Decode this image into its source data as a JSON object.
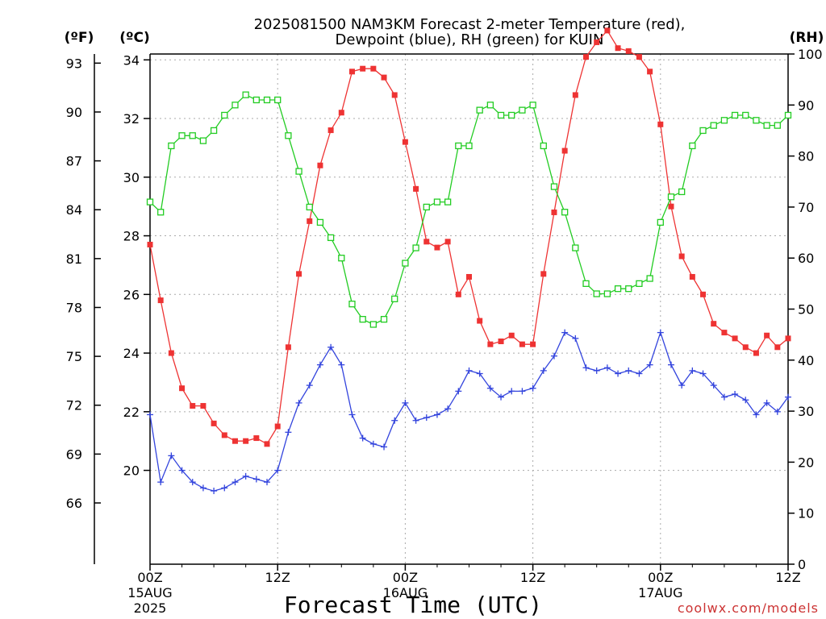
{
  "chart_data": {
    "type": "line",
    "title_line1": "2025081500 NAM3KM Forecast 2-meter Temperature (red),",
    "title_line2": "Dewpoint (blue), RH (green) for KUIN",
    "xlabel": "Forecast Time (UTC)",
    "left_outer_unit": "(ºF)",
    "left_inner_unit": "(ºC)",
    "right_unit": "(RH)",
    "watermark": "coolwx.com/models",
    "grid": true,
    "x_range_hours": [
      0,
      60
    ],
    "celsius_range": [
      16.8,
      34.2
    ],
    "rh_range": [
      0,
      100
    ],
    "fahrenheit_ticks": [
      "93",
      "90",
      "87",
      "84",
      "81",
      "78",
      "75",
      "72",
      "69",
      "66"
    ],
    "celsius_ticks": [
      "34",
      "32",
      "30",
      "28",
      "26",
      "24",
      "22",
      "20"
    ],
    "rh_ticks": [
      "100",
      "90",
      "80",
      "70",
      "60",
      "50",
      "40",
      "30",
      "20",
      "10",
      "0"
    ],
    "x_ticks": [
      {
        "hour": 0,
        "line1": "00Z",
        "line2": "15AUG",
        "line3": "2025"
      },
      {
        "hour": 12,
        "line1": "12Z",
        "line2": "",
        "line3": ""
      },
      {
        "hour": 24,
        "line1": "00Z",
        "line2": "16AUG",
        "line3": ""
      },
      {
        "hour": 36,
        "line1": "12Z",
        "line2": "",
        "line3": ""
      },
      {
        "hour": 48,
        "line1": "00Z",
        "line2": "17AUG",
        "line3": ""
      },
      {
        "hour": 60,
        "line1": "12Z",
        "line2": "",
        "line3": ""
      }
    ],
    "series": [
      {
        "key": "temperature",
        "unit": "C",
        "color": "#ee3333",
        "marker": "filled-square",
        "values": [
          27.7,
          25.8,
          24.0,
          22.8,
          22.2,
          22.2,
          21.6,
          21.2,
          21.0,
          21.0,
          21.1,
          20.9,
          21.5,
          24.2,
          26.7,
          28.5,
          30.4,
          31.6,
          32.2,
          33.6,
          33.7,
          33.7,
          33.4,
          32.8,
          31.2,
          29.6,
          27.8,
          27.6,
          27.8,
          26.0,
          26.6,
          25.1,
          24.3,
          24.4,
          24.6,
          24.3,
          24.3,
          26.7,
          28.8,
          30.9,
          32.8,
          34.1,
          34.6,
          35.0,
          34.4,
          34.3,
          34.1,
          33.6,
          31.8,
          29.0,
          27.3,
          26.6,
          26.0,
          25.0,
          24.7,
          24.5,
          24.2,
          24.0,
          24.6,
          24.2,
          24.5
        ]
      },
      {
        "key": "dewpoint",
        "unit": "C",
        "color": "#3344dd",
        "marker": "plus",
        "values": [
          21.9,
          19.6,
          20.5,
          20.0,
          19.6,
          19.4,
          19.3,
          19.4,
          19.6,
          19.8,
          19.7,
          19.6,
          20.0,
          21.3,
          22.3,
          22.9,
          23.6,
          24.2,
          23.6,
          21.9,
          21.1,
          20.9,
          20.8,
          21.7,
          22.3,
          21.7,
          21.8,
          21.9,
          22.1,
          22.7,
          23.4,
          23.3,
          22.8,
          22.5,
          22.7,
          22.7,
          22.8,
          23.4,
          23.9,
          24.7,
          24.5,
          23.5,
          23.4,
          23.5,
          23.3,
          23.4,
          23.3,
          23.6,
          24.7,
          23.6,
          22.9,
          23.4,
          23.3,
          22.9,
          22.5,
          22.6,
          22.4,
          21.9,
          22.3,
          22.0,
          22.5
        ]
      },
      {
        "key": "rh",
        "unit": "%",
        "color": "#22cc22",
        "marker": "open-square",
        "values": [
          71,
          69,
          82,
          84,
          84,
          83,
          85,
          88,
          90,
          92,
          91,
          91,
          91,
          84,
          77,
          70,
          67,
          64,
          60,
          51,
          48,
          47,
          48,
          52,
          59,
          62,
          70,
          71,
          71,
          82,
          82,
          89,
          90,
          88,
          88,
          89,
          90,
          82,
          74,
          69,
          62,
          55,
          53,
          53,
          54,
          54,
          55,
          56,
          67,
          72,
          73,
          82,
          85,
          86,
          87,
          88,
          88,
          87,
          86,
          86,
          88
        ]
      }
    ]
  }
}
